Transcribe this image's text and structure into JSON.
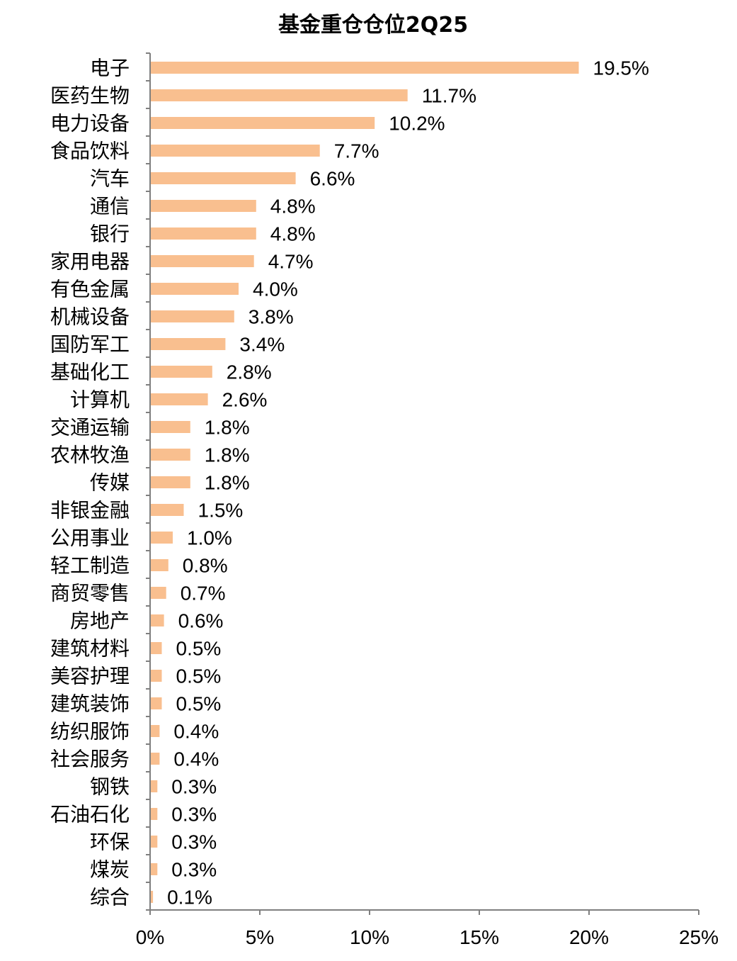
{
  "chart_data": {
    "type": "bar",
    "orientation": "horizontal",
    "title": "基金重仓仓位2Q25",
    "categories": [
      "电子",
      "医药生物",
      "电力设备",
      "食品饮料",
      "汽车",
      "通信",
      "银行",
      "家用电器",
      "有色金属",
      "机械设备",
      "国防军工",
      "基础化工",
      "计算机",
      "交通运输",
      "农林牧渔",
      "传媒",
      "非银金融",
      "公用事业",
      "轻工制造",
      "商贸零售",
      "房地产",
      "建筑材料",
      "美容护理",
      "建筑装饰",
      "纺织服饰",
      "社会服务",
      "钢铁",
      "石油石化",
      "环保",
      "煤炭",
      "综合"
    ],
    "values": [
      19.5,
      11.7,
      10.2,
      7.7,
      6.6,
      4.8,
      4.8,
      4.7,
      4.0,
      3.8,
      3.4,
      2.8,
      2.6,
      1.8,
      1.8,
      1.8,
      1.5,
      1.0,
      0.8,
      0.7,
      0.6,
      0.5,
      0.5,
      0.5,
      0.4,
      0.4,
      0.3,
      0.3,
      0.3,
      0.3,
      0.1
    ],
    "data_labels": [
      "19.5%",
      "11.7%",
      "10.2%",
      "7.7%",
      "6.6%",
      "4.8%",
      "4.8%",
      "4.7%",
      "4.0%",
      "3.8%",
      "3.4%",
      "2.8%",
      "2.6%",
      "1.8%",
      "1.8%",
      "1.8%",
      "1.5%",
      "1.0%",
      "0.8%",
      "0.7%",
      "0.6%",
      "0.5%",
      "0.5%",
      "0.5%",
      "0.4%",
      "0.4%",
      "0.3%",
      "0.3%",
      "0.3%",
      "0.3%",
      "0.1%"
    ],
    "xlim": [
      0,
      25
    ],
    "xticks": [
      0,
      5,
      10,
      15,
      20,
      25
    ],
    "xtick_labels": [
      "0%",
      "5%",
      "10%",
      "15%",
      "20%",
      "25%"
    ],
    "grid": false,
    "legend": "none",
    "bar_color": "#f9bf8f"
  }
}
